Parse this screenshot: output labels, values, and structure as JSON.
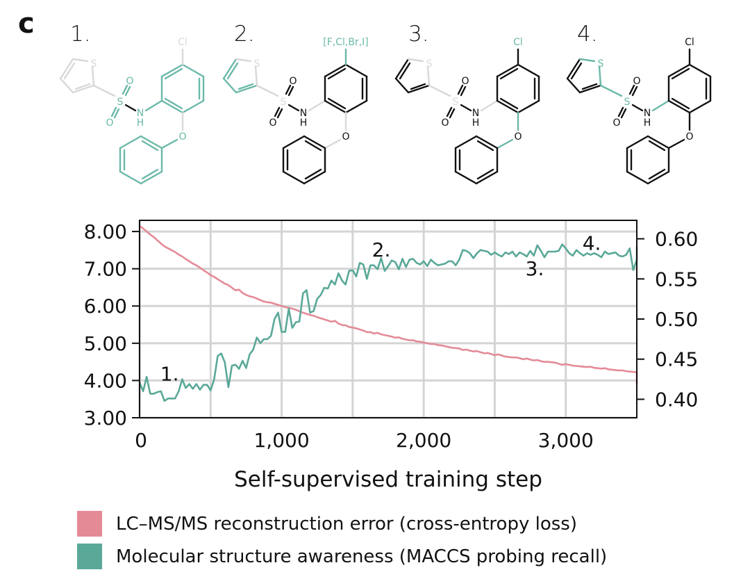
{
  "panel": {
    "letter": "c"
  },
  "colors": {
    "loss": "#e48a97",
    "recall": "#5aa898",
    "highlight": "#6ab8a8",
    "faded": "#d8d8d8",
    "bond": "#111111",
    "grid": "#d4d4d4"
  },
  "molecules": [
    {
      "label": "1.",
      "substituent": "Cl",
      "highlight": {
        "thiophene": "faded",
        "thiophene_S": "faded",
        "c_s_bond": "faded",
        "sulfonyl": "highlight",
        "nh": "highlight",
        "n_aryl_bond": "highlight",
        "aryl_ring": "highlight",
        "aryl_sub_bond": "faded",
        "substituent": "faded",
        "ether_bond": "faded",
        "ether_O": "highlight",
        "phenyl_bond": "highlight",
        "phenyl_ring": "highlight"
      }
    },
    {
      "label": "2.",
      "substituent": "[F,Cl,Br,I]",
      "highlight": {
        "thiophene": "highlight",
        "thiophene_S": "faded",
        "c_s_bond": "faded",
        "sulfonyl": "mixed",
        "nh": "normal",
        "n_aryl_bond": "faded",
        "aryl_ring": "normal",
        "aryl_sub_bond": "highlight",
        "substituent": "highlight",
        "ether_bond": "faded",
        "ether_O": "normal",
        "phenyl_bond": "faded",
        "phenyl_ring": "normal"
      }
    },
    {
      "label": "3.",
      "substituent": "Cl",
      "highlight": {
        "thiophene": "normal",
        "thiophene_S": "faded",
        "c_s_bond": "faded",
        "sulfonyl": "faded_S",
        "nh": "normal",
        "n_aryl_bond": "faded",
        "aryl_ring": "normal",
        "aryl_sub_bond": "normal",
        "substituent": "highlight",
        "ether_bond": "highlight",
        "ether_O": "normal",
        "phenyl_bond": "highlight",
        "phenyl_ring": "normal"
      }
    },
    {
      "label": "4.",
      "substituent": "Cl",
      "highlight": {
        "thiophene": "normal",
        "thiophene_S": "highlight",
        "c_s_bond": "highlight",
        "sulfonyl": "highlight_S",
        "nh": "normal",
        "n_aryl_bond": "highlight",
        "aryl_ring": "normal",
        "aryl_sub_bond": "normal",
        "substituent": "normal",
        "ether_bond": "normal",
        "ether_O": "normal",
        "phenyl_bond": "normal",
        "phenyl_ring": "normal"
      }
    }
  ],
  "atoms": {
    "S": "S",
    "O": "O",
    "N": "N",
    "H": "H"
  },
  "chart_data": {
    "type": "line",
    "title": "",
    "xlabel": "Self-supervised training step",
    "ylabel_left": "",
    "ylabel_right": "",
    "xlim": [
      0,
      3500
    ],
    "ylim_left": [
      3.0,
      8.3
    ],
    "ylim_right": [
      0.377,
      0.623
    ],
    "x_ticks": [
      0,
      1000,
      2000,
      3000
    ],
    "x_tick_labels": [
      "0",
      "1,000",
      "2,000",
      "3,000"
    ],
    "x_grid": [
      0,
      500,
      1000,
      1500,
      2000,
      2500,
      3000
    ],
    "y_left_ticks": [
      3,
      4,
      5,
      6,
      7,
      8
    ],
    "y_left_tick_labels": [
      "3.00",
      "4.00",
      "5.00",
      "6.00",
      "7.00",
      "8.00"
    ],
    "y_right_ticks": [
      0.4,
      0.45,
      0.5,
      0.55,
      0.6
    ],
    "y_right_tick_labels": [
      "0.40",
      "0.45",
      "0.50",
      "0.55",
      "0.60"
    ],
    "grid": true,
    "legend_position": "bottom",
    "series": [
      {
        "name": "LC–MS/MS reconstruction error (cross-entropy loss)",
        "axis": "left",
        "color_key": "loss",
        "x_start": 0,
        "x_step": 25,
        "values": [
          8.15,
          8.08,
          8.0,
          7.92,
          7.85,
          7.76,
          7.68,
          7.6,
          7.55,
          7.5,
          7.45,
          7.38,
          7.33,
          7.26,
          7.2,
          7.14,
          7.09,
          7.03,
          6.96,
          6.9,
          6.83,
          6.78,
          6.72,
          6.66,
          6.6,
          6.56,
          6.49,
          6.42,
          6.44,
          6.35,
          6.3,
          6.26,
          6.24,
          6.2,
          6.16,
          6.12,
          6.1,
          6.09,
          6.06,
          6.03,
          6.0,
          5.97,
          5.95,
          5.93,
          5.9,
          5.86,
          5.82,
          5.79,
          5.76,
          5.74,
          5.7,
          5.67,
          5.64,
          5.61,
          5.58,
          5.6,
          5.53,
          5.49,
          5.48,
          5.44,
          5.42,
          5.4,
          5.37,
          5.34,
          5.3,
          5.3,
          5.26,
          5.28,
          5.24,
          5.22,
          5.2,
          5.18,
          5.15,
          5.16,
          5.12,
          5.1,
          5.08,
          5.08,
          5.05,
          5.04,
          5.02,
          5.0,
          4.98,
          4.98,
          4.95,
          4.94,
          4.92,
          4.9,
          4.88,
          4.87,
          4.86,
          4.82,
          4.83,
          4.8,
          4.78,
          4.79,
          4.76,
          4.73,
          4.74,
          4.71,
          4.68,
          4.7,
          4.67,
          4.64,
          4.63,
          4.62,
          4.62,
          4.6,
          4.57,
          4.59,
          4.56,
          4.54,
          4.55,
          4.52,
          4.5,
          4.5,
          4.49,
          4.48,
          4.45,
          4.42,
          4.44,
          4.42,
          4.4,
          4.39,
          4.38,
          4.37,
          4.36,
          4.37,
          4.34,
          4.33,
          4.32,
          4.33,
          4.3,
          4.29,
          4.28,
          4.27,
          4.27,
          4.25,
          4.24,
          4.23,
          4.22,
          4.2,
          4.21,
          4.19,
          4.18,
          4.16,
          4.17,
          4.15,
          4.14,
          4.12,
          4.14,
          4.11,
          4.09,
          4.1,
          4.07,
          4.08,
          4.05,
          4.06,
          4.04,
          4.03,
          4.02,
          4.03,
          4.0,
          4.01,
          3.99,
          3.98,
          3.97,
          3.98,
          3.96,
          3.95,
          3.96,
          3.93,
          3.94,
          3.92,
          3.91,
          3.9,
          3.9,
          3.9
        ]
      },
      {
        "name": "Molecular structure awareness (MACCS probing recall)",
        "axis": "right",
        "color_key": "recall",
        "x_start": 0,
        "x_step": 25,
        "values": [
          0.421,
          0.41,
          0.428,
          0.407,
          0.407,
          0.409,
          0.41,
          0.398,
          0.401,
          0.401,
          0.401,
          0.41,
          0.425,
          0.414,
          0.419,
          0.413,
          0.419,
          0.412,
          0.418,
          0.418,
          0.411,
          0.425,
          0.454,
          0.457,
          0.446,
          0.415,
          0.442,
          0.443,
          0.438,
          0.448,
          0.439,
          0.456,
          0.462,
          0.477,
          0.47,
          0.475,
          0.475,
          0.479,
          0.5,
          0.508,
          0.484,
          0.484,
          0.513,
          0.489,
          0.496,
          0.497,
          0.532,
          0.536,
          0.508,
          0.51,
          0.525,
          0.53,
          0.539,
          0.538,
          0.548,
          0.543,
          0.557,
          0.548,
          0.543,
          0.56,
          0.561,
          0.553,
          0.57,
          0.568,
          0.55,
          0.567,
          0.567,
          0.562,
          0.576,
          0.56,
          0.566,
          0.573,
          0.571,
          0.562,
          0.575,
          0.565,
          0.574,
          0.575,
          0.57,
          0.568,
          0.572,
          0.566,
          0.574,
          0.57,
          0.567,
          0.568,
          0.569,
          0.572,
          0.572,
          0.567,
          0.574,
          0.586,
          0.585,
          0.582,
          0.576,
          0.582,
          0.586,
          0.585,
          0.584,
          0.58,
          0.583,
          0.58,
          0.578,
          0.583,
          0.581,
          0.584,
          0.578,
          0.583,
          0.581,
          0.578,
          0.585,
          0.579,
          0.592,
          0.585,
          0.577,
          0.584,
          0.584,
          0.584,
          0.585,
          0.593,
          0.588,
          0.582,
          0.579,
          0.586,
          0.582,
          0.579,
          0.582,
          0.58,
          0.582,
          0.58,
          0.577,
          0.584,
          0.581,
          0.582,
          0.583,
          0.579,
          0.578,
          0.58,
          0.588,
          0.561,
          0.574,
          0.583,
          0.585,
          0.58,
          0.588,
          0.578,
          0.582,
          0.575,
          0.583,
          0.581,
          0.584,
          0.577,
          0.579,
          0.586,
          0.575,
          0.582,
          0.58,
          0.583,
          0.576,
          0.584,
          0.58,
          0.583,
          0.584,
          0.587,
          0.583,
          0.585,
          0.582,
          0.587,
          0.588,
          0.589,
          0.586,
          0.59,
          0.588,
          0.59
        ]
      }
    ],
    "annotations": [
      {
        "text": "1.",
        "series": "recall",
        "x": 250
      },
      {
        "text": "2.",
        "series": "recall",
        "x": 1750
      },
      {
        "text": "3.",
        "series": "recall",
        "x": 2850
      },
      {
        "text": "4.",
        "series": "recall",
        "x": 3300
      }
    ]
  },
  "legend": [
    {
      "label": "LC–MS/MS reconstruction error (cross-entropy loss)",
      "color_key": "loss"
    },
    {
      "label": "Molecular structure awareness (MACCS probing recall)",
      "color_key": "recall"
    }
  ]
}
